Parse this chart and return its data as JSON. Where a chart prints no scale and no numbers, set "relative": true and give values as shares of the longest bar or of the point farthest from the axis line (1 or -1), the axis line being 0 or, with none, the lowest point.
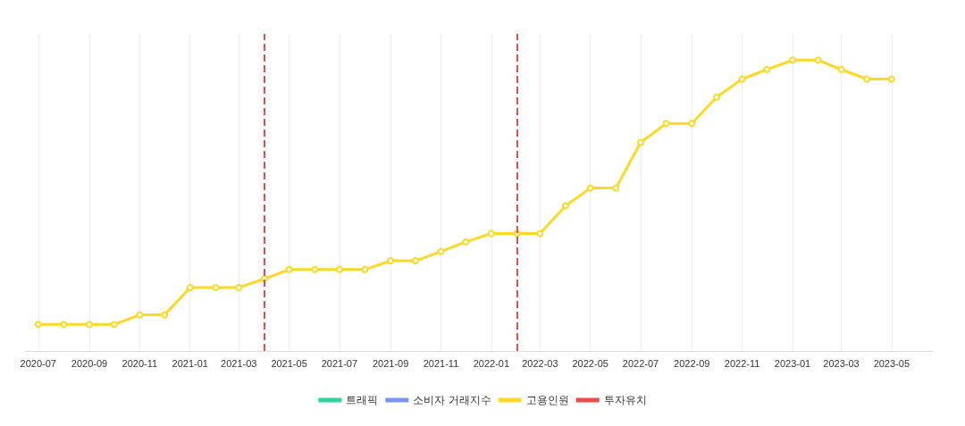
{
  "chart_data": {
    "type": "line",
    "relative": true,
    "x": [
      "2020-07",
      "2020-08",
      "2020-09",
      "2020-10",
      "2020-11",
      "2020-12",
      "2021-01",
      "2021-02",
      "2021-03",
      "2021-04",
      "2021-05",
      "2021-06",
      "2021-07",
      "2021-08",
      "2021-09",
      "2021-10",
      "2021-11",
      "2021-12",
      "2022-01",
      "2022-02",
      "2022-03",
      "2022-04",
      "2022-05",
      "2022-06",
      "2022-07",
      "2022-08",
      "2022-09",
      "2022-10",
      "2022-11",
      "2022-12",
      "2023-01",
      "2023-02",
      "2023-03",
      "2023-04",
      "2023-05"
    ],
    "xlim": [
      "2020-06-15",
      "2023-06-20"
    ],
    "xticks": [
      "2020-07",
      "2020-09",
      "2020-11",
      "2021-01",
      "2021-03",
      "2021-05",
      "2021-07",
      "2021-09",
      "2021-11",
      "2022-01",
      "2022-03",
      "2022-05",
      "2022-07",
      "2022-09",
      "2022-11",
      "2023-01",
      "2023-03",
      "2023-05"
    ],
    "series": [
      {
        "name": "트래픽",
        "color": "#2ed3a0",
        "values": [
          null,
          null,
          null,
          null,
          null,
          null,
          null,
          null,
          null,
          null,
          null,
          null,
          null,
          null,
          null,
          null,
          null,
          null,
          null,
          null,
          null,
          null,
          null,
          null,
          null,
          null,
          null,
          null,
          null,
          null,
          null,
          null,
          null,
          null,
          null
        ]
      },
      {
        "name": "소비자 거래지수",
        "color": "#7b93f5",
        "values": [
          null,
          null,
          null,
          null,
          null,
          null,
          null,
          null,
          null,
          null,
          null,
          null,
          null,
          null,
          null,
          null,
          null,
          null,
          null,
          null,
          null,
          null,
          null,
          null,
          null,
          null,
          null,
          null,
          null,
          null,
          null,
          null,
          null,
          null,
          null
        ]
      },
      {
        "name": "고용인원",
        "color": "#fdd826",
        "values": [
          0.091,
          0.091,
          0.091,
          0.091,
          0.124,
          0.124,
          0.218,
          0.218,
          0.218,
          0.248,
          0.28,
          0.28,
          0.28,
          0.28,
          0.31,
          0.31,
          0.342,
          0.375,
          0.404,
          0.404,
          0.404,
          0.499,
          0.56,
          0.56,
          0.717,
          0.782,
          0.782,
          0.873,
          0.935,
          0.968,
          1,
          1,
          0.968,
          0.935,
          0.935
        ]
      }
    ],
    "ref_lines": [
      {
        "axis": "x",
        "value": "2021-04",
        "label": "투자유치",
        "color": "#e84c4c",
        "line_style": "dashed"
      },
      {
        "axis": "x",
        "value": "2022-02",
        "color": "#e84c4c",
        "line_style": "dashed"
      }
    ],
    "marker": "circle",
    "line_style": "solid",
    "grid": "x",
    "legend": "bottom"
  }
}
